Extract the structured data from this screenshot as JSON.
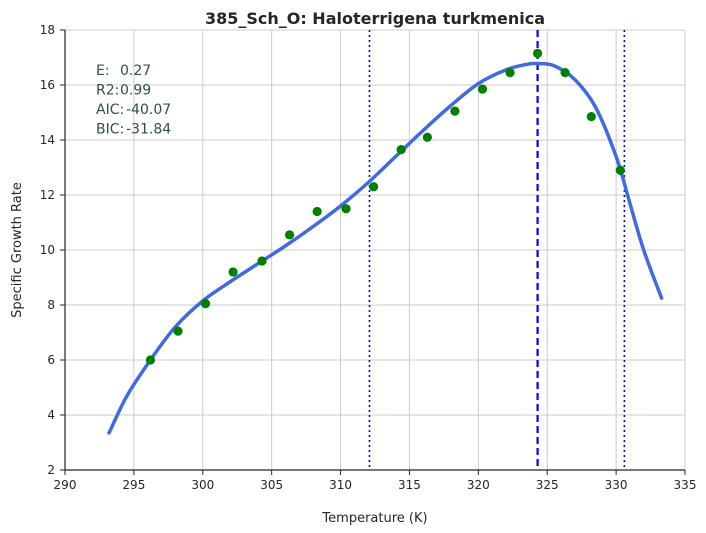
{
  "chart_data": {
    "type": "scatter",
    "title": "385_Sch_O: Haloterrigena turkmenica",
    "xlabel": "Temperature (K)",
    "ylabel": "Specific Growth Rate",
    "xlim": [
      290,
      335
    ],
    "ylim": [
      2,
      18
    ],
    "xticks": [
      290,
      295,
      300,
      305,
      310,
      315,
      320,
      325,
      330,
      335
    ],
    "yticks": [
      2,
      4,
      6,
      8,
      10,
      12,
      14,
      16,
      18
    ],
    "grid": true,
    "stats": [
      {
        "label": "E:",
        "value": "0.27"
      },
      {
        "label": "R2:",
        "value": "0.99"
      },
      {
        "label": "AIC:",
        "value": "-40.07"
      },
      {
        "label": "BIC:",
        "value": "-31.84"
      }
    ],
    "points": {
      "color": "#008000",
      "x": [
        296.2,
        298.2,
        300.2,
        302.2,
        304.3,
        306.3,
        308.3,
        310.4,
        312.4,
        314.4,
        316.3,
        318.3,
        320.3,
        322.3,
        324.3,
        326.3,
        328.2,
        330.3
      ],
      "y": [
        6.0,
        7.05,
        8.05,
        9.2,
        9.6,
        10.55,
        11.4,
        11.5,
        12.3,
        13.65,
        14.1,
        15.05,
        15.85,
        16.45,
        17.15,
        16.45,
        14.85,
        12.9
      ]
    },
    "fit_curve": {
      "color": "#4169e1",
      "x": [
        293.2,
        294.5,
        296.2,
        298.0,
        300.0,
        302.0,
        304.0,
        306.0,
        308.0,
        310.0,
        312.0,
        314.0,
        316.0,
        318.0,
        320.0,
        322.0,
        323.5,
        324.3,
        325.5,
        327.0,
        328.5,
        330.0,
        331.0,
        332.0,
        333.3
      ],
      "y": [
        3.35,
        4.7,
        6.0,
        7.2,
        8.15,
        8.85,
        9.5,
        10.15,
        10.85,
        11.6,
        12.45,
        13.4,
        14.35,
        15.25,
        16.05,
        16.55,
        16.75,
        16.78,
        16.7,
        16.2,
        15.2,
        13.4,
        11.7,
        10.0,
        8.25
      ]
    },
    "vlines": [
      {
        "x": 312.1,
        "style": "dotted",
        "color": "#0000ff"
      },
      {
        "x": 324.3,
        "style": "dashed",
        "color": "#0000ff"
      },
      {
        "x": 330.6,
        "style": "dotted",
        "color": "#0000ff"
      }
    ]
  }
}
